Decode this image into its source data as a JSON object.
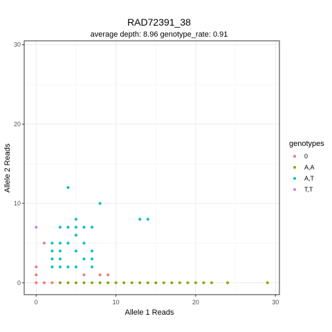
{
  "chart_data": {
    "type": "scatter",
    "title": "RAD72391_38",
    "subtitle": "average depth:  8.96  genotype_rate:  0.91",
    "xlabel": "Allele 1 Reads",
    "ylabel": "Allele 2 Reads",
    "xlim": [
      -1.5,
      30.5
    ],
    "ylim": [
      -1.5,
      30.5
    ],
    "xticks": [
      0,
      10,
      20,
      30
    ],
    "yticks": [
      0,
      10,
      20,
      30
    ],
    "grid": true,
    "legend_position": "right",
    "legend": {
      "title": "genotypes",
      "entries": [
        {
          "label": "0",
          "color": "#F8766D"
        },
        {
          "label": "A,A",
          "color": "#7CAE00"
        },
        {
          "label": "A,T",
          "color": "#00BFC4"
        },
        {
          "label": "T,T",
          "color": "#C77CFF"
        }
      ]
    },
    "series": [
      {
        "name": "0",
        "color": "#F8766D",
        "points": [
          [
            0,
            0
          ],
          [
            0,
            1
          ],
          [
            0,
            2
          ],
          [
            1,
            0
          ],
          [
            1,
            5
          ],
          [
            2,
            0
          ],
          [
            6,
            1
          ],
          [
            8,
            1
          ],
          [
            9,
            1
          ],
          [
            3,
            0
          ]
        ]
      },
      {
        "name": "A,A",
        "color": "#7CAE00",
        "points": [
          [
            3,
            0
          ],
          [
            4,
            0
          ],
          [
            5,
            0
          ],
          [
            6,
            0
          ],
          [
            7,
            0
          ],
          [
            8,
            0
          ],
          [
            9,
            0
          ],
          [
            10,
            0
          ],
          [
            11,
            0
          ],
          [
            12,
            0
          ],
          [
            13,
            0
          ],
          [
            14,
            0
          ],
          [
            15,
            0
          ],
          [
            16,
            0
          ],
          [
            17,
            0
          ],
          [
            18,
            0
          ],
          [
            19,
            0
          ],
          [
            20,
            0
          ],
          [
            21,
            0
          ],
          [
            22,
            0
          ],
          [
            24,
            0
          ],
          [
            29,
            0
          ]
        ]
      },
      {
        "name": "A,T",
        "color": "#00BFC4",
        "points": [
          [
            2,
            2
          ],
          [
            2,
            3
          ],
          [
            2,
            4
          ],
          [
            2,
            5
          ],
          [
            3,
            2
          ],
          [
            3,
            3
          ],
          [
            3,
            4
          ],
          [
            3,
            5
          ],
          [
            3,
            7
          ],
          [
            4,
            2
          ],
          [
            4,
            5
          ],
          [
            4,
            7
          ],
          [
            4,
            12
          ],
          [
            5,
            2
          ],
          [
            5,
            4
          ],
          [
            5,
            6
          ],
          [
            5,
            7
          ],
          [
            5,
            8
          ],
          [
            6,
            3
          ],
          [
            6,
            5
          ],
          [
            6,
            7
          ],
          [
            7,
            2
          ],
          [
            7,
            3
          ],
          [
            7,
            4
          ],
          [
            7,
            7
          ],
          [
            8,
            10
          ],
          [
            13,
            8
          ],
          [
            14,
            8
          ]
        ]
      },
      {
        "name": "T,T",
        "color": "#C77CFF",
        "points": [
          [
            0,
            7
          ]
        ]
      }
    ]
  }
}
